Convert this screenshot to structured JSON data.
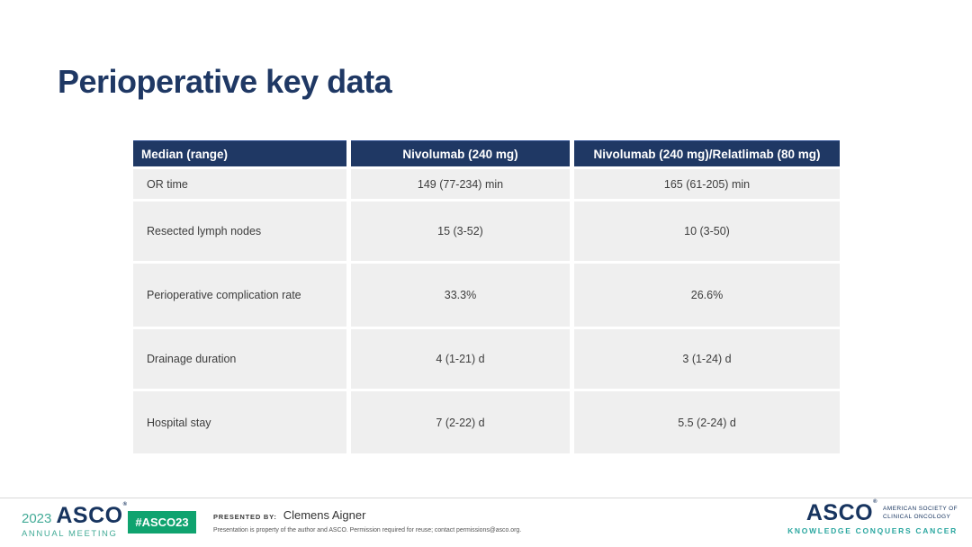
{
  "slide": {
    "title": "Perioperative key data"
  },
  "table": {
    "header": {
      "col0": "Median (range)",
      "col1": "Nivolumab (240 mg)",
      "col2": "Nivolumab (240 mg)/Relatlimab (80 mg)"
    },
    "rows": [
      {
        "label": "OR time",
        "nivolumab": "149 (77-234) min",
        "nivolumab_relatlimab": "165 (61-205) min"
      },
      {
        "label": "Resected lymph nodes",
        "nivolumab": "15 (3-52)",
        "nivolumab_relatlimab": "10 (3-50)"
      },
      {
        "label": "Perioperative complication rate",
        "nivolumab": "33.3%",
        "nivolumab_relatlimab": "26.6%"
      },
      {
        "label": "Drainage duration",
        "nivolumab": "4 (1-21) d",
        "nivolumab_relatlimab": "3 (1-24) d"
      },
      {
        "label": "Hospital stay",
        "nivolumab": "7 (2-22) d",
        "nivolumab_relatlimab": "5.5 (2-24) d"
      }
    ]
  },
  "footer": {
    "meeting_year": "2023",
    "meeting_logo_text": "ASCO",
    "meeting_reg_mark": "®",
    "meeting_name": "ANNUAL MEETING",
    "hashtag": "#ASCO23",
    "presented_by_label": "PRESENTED BY:",
    "presenter": "Clemens Aigner",
    "disclaimer": "Presentation is property of the author and ASCO. Permission required for reuse; contact permissions@asco.org.",
    "asco_logo_text": "ASCO",
    "asco_reg_mark": "®",
    "asco_org_line1": "AMERICAN SOCIETY OF",
    "asco_org_line2": "CLINICAL ONCOLOGY",
    "asco_tagline": "KNOWLEDGE CONQUERS CANCER"
  },
  "colors": {
    "navy": "#1f3864",
    "logo_navy": "#17345f",
    "meeting_teal": "#43ab97",
    "badge_green": "#0fa36f",
    "tagline_teal": "#2ba7a0",
    "row_bg": "#efefef",
    "divider_gray": "#d9d9d9"
  }
}
